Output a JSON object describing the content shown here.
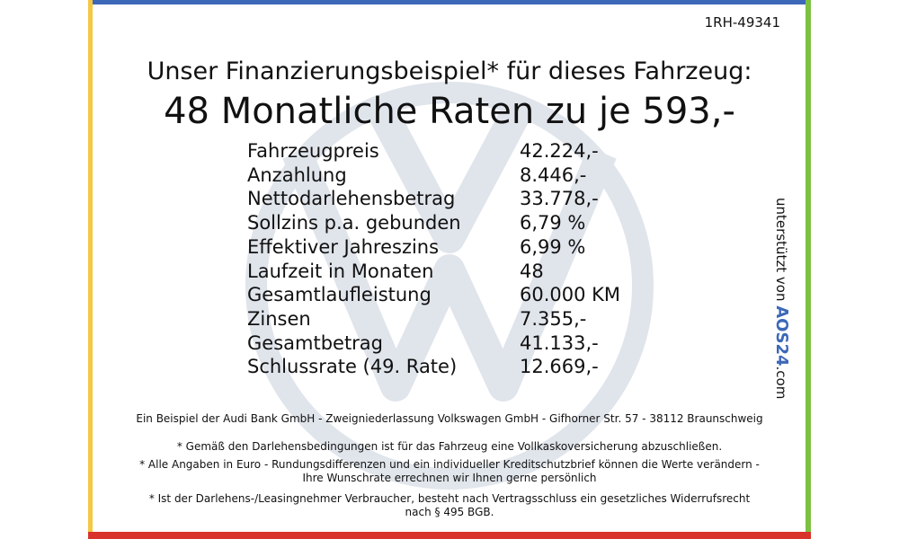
{
  "reference": "1RH-49341",
  "heading": {
    "line1": "Unser Finanzierungsbeispiel* für dieses Fahrzeug:",
    "line2": "48 Monatliche Raten zu je 593,-"
  },
  "table": {
    "rows": [
      [
        "Fahrzeugpreis",
        "42.224,-"
      ],
      [
        "Anzahlung",
        "8.446,-"
      ],
      [
        "Nettodarlehensbetrag",
        "33.778,-"
      ],
      [
        "Sollzins p.a. gebunden",
        "6,79 %"
      ],
      [
        "Effektiver Jahreszins",
        "6,99 %"
      ],
      [
        "Laufzeit in Monaten",
        "48"
      ],
      [
        "Gesamtlaufleistung",
        "60.000 KM"
      ],
      [
        "Zinsen",
        "7.355,-"
      ],
      [
        "Gesamtbetrag",
        "41.133,-"
      ],
      [
        "Schlussrate (49. Rate)",
        "12.669,-"
      ]
    ]
  },
  "footnotes": [
    "Ein Beispiel der Audi Bank GmbH - Zweigniederlassung Volkswagen GmbH - Gifhorner Str. 57 - 38112 Braunschweig",
    "* Gemäß den Darlehensbedingungen ist für das Fahrzeug eine Vollkaskoversicherung abzuschließen.",
    "* Alle Angaben in Euro - Rundungsdifferenzen und ein individueller Kreditschutzbrief können die Werte verändern - Ihre Wunschrate errechnen wir Ihnen gerne persönlich",
    "* Ist der Darlehens-/Leasingnehmer Verbraucher, besteht nach Vertragsschluss ein gesetzliches Widerrufsrecht nach § 495 BGB."
  ],
  "sponsor": {
    "text": "unterstützt von",
    "logo": "AOS24",
    "suffix": ".com"
  }
}
